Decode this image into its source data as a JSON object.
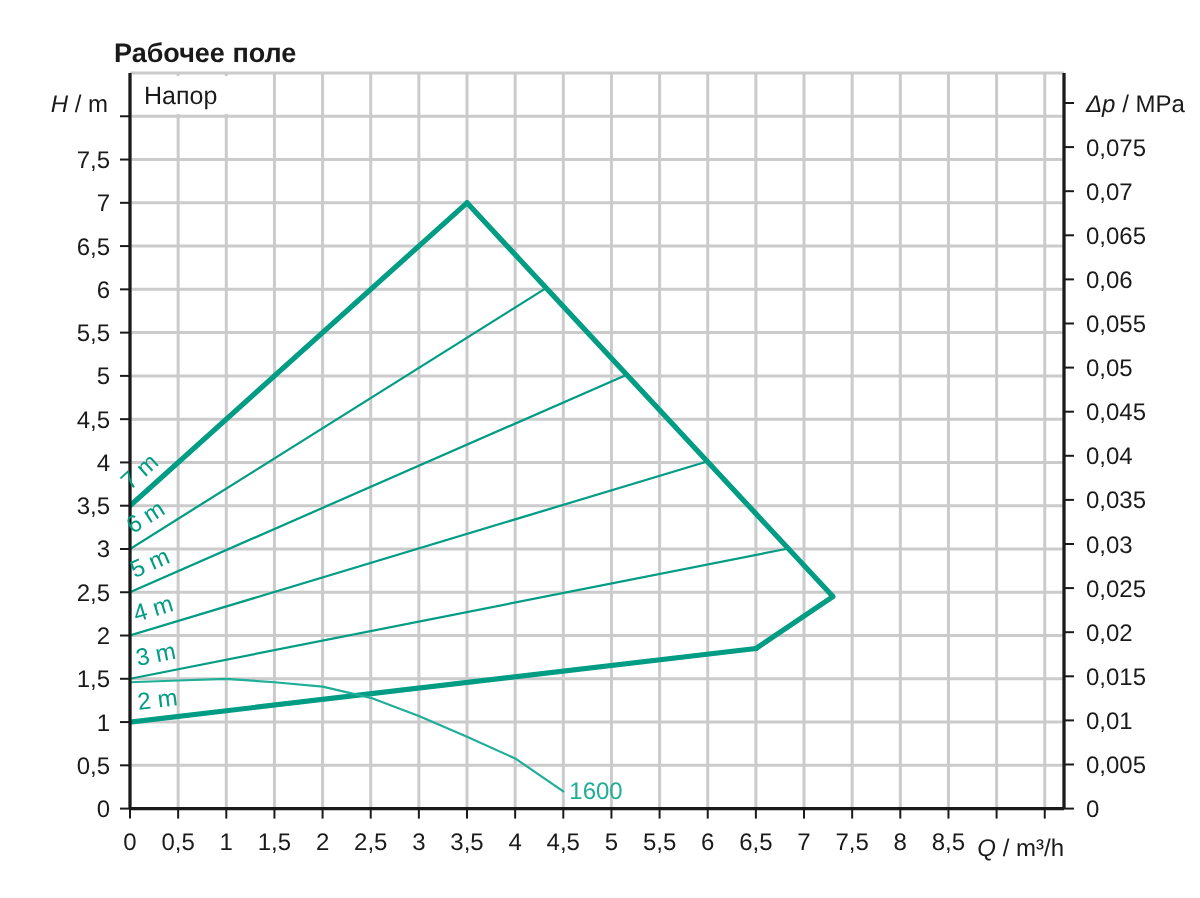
{
  "chart_data": {
    "type": "line",
    "title": "Рабочее поле",
    "xlabel": "Q / m³/h",
    "ylabel": "H / m",
    "y2label": "Δp / MPa",
    "annotations": [
      "Напор"
    ],
    "xlim": [
      0,
      9.7
    ],
    "xticks": [
      0,
      {
        "value": 0.5,
        "label": "0,5"
      },
      1,
      {
        "value": 1.5,
        "label": "1,5"
      },
      2,
      {
        "value": 2.5,
        "label": "2,5"
      },
      3,
      {
        "value": 3.5,
        "label": "3,5"
      },
      4,
      {
        "value": 4.5,
        "label": "4,5"
      },
      5,
      {
        "value": 5.5,
        "label": "5,5"
      },
      6,
      {
        "value": 6.5,
        "label": "6,5"
      },
      7,
      {
        "value": 7.5,
        "label": "7,5"
      },
      8,
      {
        "value": 8.5,
        "label": "8,5"
      },
      {
        "value": 9,
        "label": null
      },
      {
        "value": 9.5,
        "label": null
      }
    ],
    "ylim": [
      0,
      8.5
    ],
    "yticks": [
      0,
      {
        "value": 0.5,
        "label": "0,5"
      },
      1,
      {
        "value": 1.5,
        "label": "1,5"
      },
      2,
      {
        "value": 2.5,
        "label": "2,5"
      },
      3,
      {
        "value": 3.5,
        "label": "3,5"
      },
      4,
      {
        "value": 4.5,
        "label": "4,5"
      },
      5,
      {
        "value": 5.5,
        "label": "5,5"
      },
      6,
      {
        "value": 6.5,
        "label": "6,5"
      },
      7,
      {
        "value": 7.5,
        "label": "7,5"
      },
      {
        "value": 8,
        "label": null
      }
    ],
    "y2lim": [
      0,
      0.0834
    ],
    "y2ticks": [
      0,
      {
        "value": 0.005,
        "label": "0,005"
      },
      {
        "value": 0.01,
        "label": "0,01"
      },
      {
        "value": 0.015,
        "label": "0,015"
      },
      {
        "value": 0.02,
        "label": "0,02"
      },
      {
        "value": 0.025,
        "label": "0,025"
      },
      {
        "value": 0.03,
        "label": "0,03"
      },
      {
        "value": 0.035,
        "label": "0,035"
      },
      {
        "value": 0.04,
        "label": "0,04"
      },
      {
        "value": 0.045,
        "label": "0,045"
      },
      {
        "value": 0.05,
        "label": "0,05"
      },
      {
        "value": 0.055,
        "label": "0,055"
      },
      {
        "value": 0.06,
        "label": "0,06"
      },
      {
        "value": 0.065,
        "label": "0,065"
      },
      {
        "value": 0.07,
        "label": "0,07"
      },
      {
        "value": 0.075,
        "label": "0,075"
      },
      {
        "value": 0.08,
        "label": null
      }
    ],
    "grid": true,
    "legend": false,
    "marker": "none",
    "line_style": "solid",
    "series": [
      {
        "name": "7 m",
        "color": "#009c84",
        "x": [
          0,
          3.5
        ],
        "values": [
          3.5,
          7
        ]
      },
      {
        "name": "6 m",
        "color": "#009c84",
        "x": [
          0,
          4.3
        ],
        "values": [
          3,
          6
        ]
      },
      {
        "name": "5 m",
        "color": "#009c84",
        "x": [
          0,
          5.13
        ],
        "values": [
          2.5,
          5
        ]
      },
      {
        "name": "4 m",
        "color": "#009c84",
        "x": [
          0,
          5.96
        ],
        "values": [
          2,
          4
        ]
      },
      {
        "name": "3 m",
        "color": "#009c84",
        "x": [
          0,
          6.81
        ],
        "values": [
          1.5,
          3
        ]
      },
      {
        "name": "2 m",
        "color": "#009c84",
        "x": [
          0,
          6.5
        ],
        "values": [
          1,
          1.85
        ]
      },
      {
        "color": "#009c84",
        "x": [
          3.5,
          7.3,
          6.5
        ],
        "values": [
          7,
          2.45,
          1.85
        ]
      },
      {
        "name": "1600",
        "color": "#1fae98",
        "x": [
          0,
          0.5,
          1,
          1.5,
          2,
          2.5,
          3,
          3.5,
          4,
          4.5
        ],
        "values": [
          1.46,
          1.48,
          1.5,
          1.46,
          1.41,
          1.28,
          1.07,
          0.83,
          0.58,
          0.2
        ]
      }
    ]
  }
}
